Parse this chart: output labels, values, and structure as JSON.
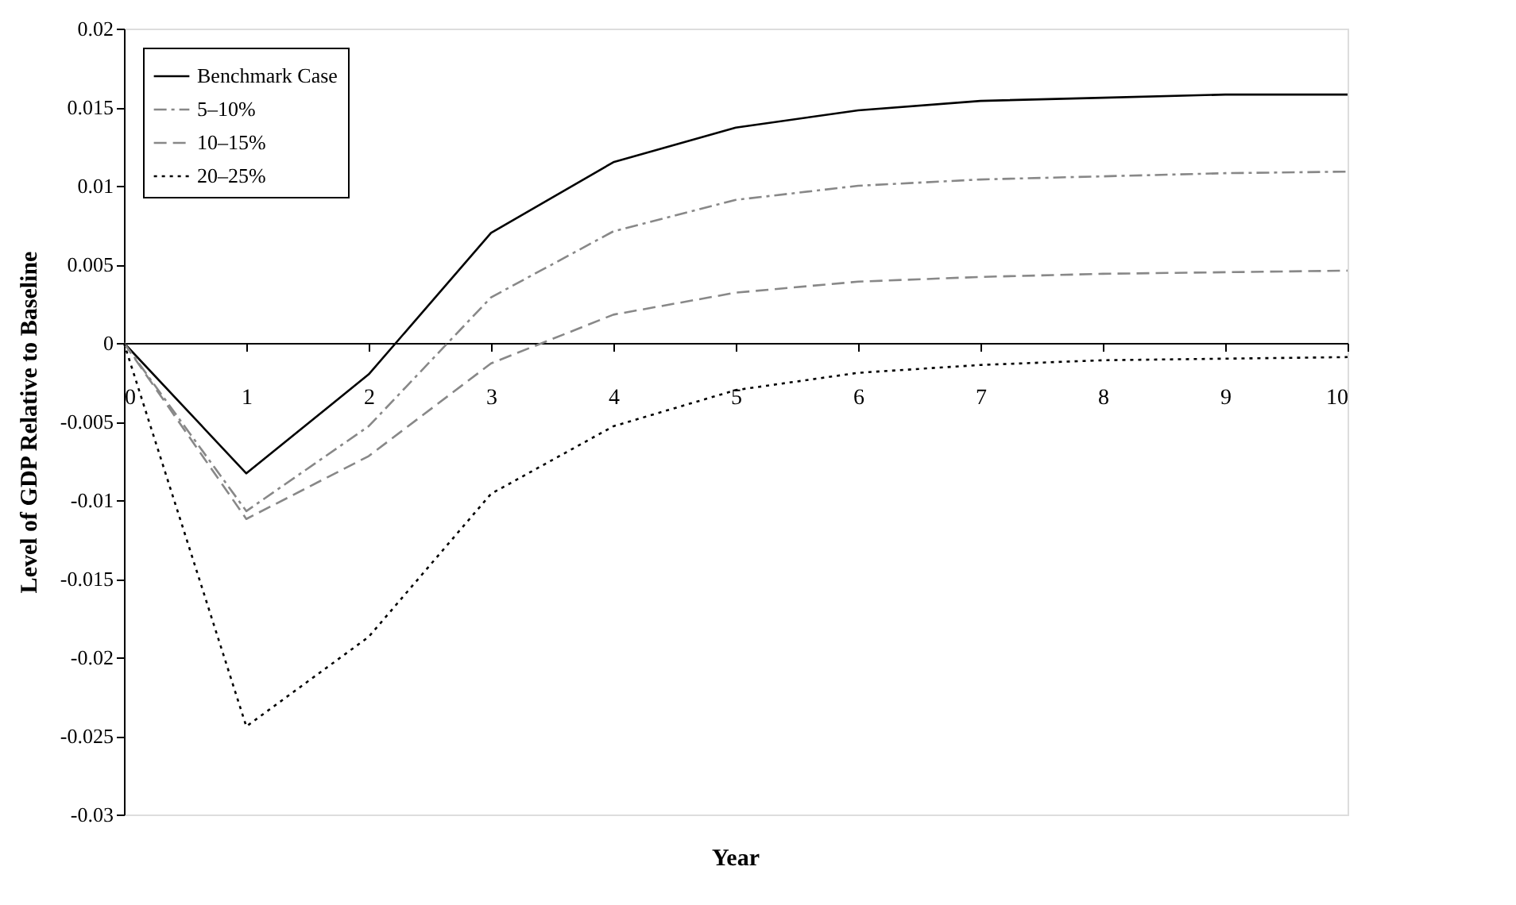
{
  "chart_data": {
    "type": "line",
    "xlabel": "Year",
    "ylabel": "Level of GDP Relative to Baseline",
    "categories": [
      "0",
      "1",
      "2",
      "3",
      "4",
      "5",
      "6",
      "7",
      "8",
      "9",
      "10"
    ],
    "ylim": [
      -0.03,
      0.02
    ],
    "yticks": [
      {
        "value": -0.03,
        "label": "-0.03"
      },
      {
        "value": -0.025,
        "label": "-0.025"
      },
      {
        "value": -0.02,
        "label": "-0.02"
      },
      {
        "value": -0.015,
        "label": "-0.015"
      },
      {
        "value": -0.01,
        "label": "-0.01"
      },
      {
        "value": -0.005,
        "label": "-0.005"
      },
      0,
      0.005,
      0.01,
      0.015,
      0.02
    ],
    "grid": false,
    "legend": "top left",
    "marker": "none",
    "series": [
      {
        "name": "Benchmark Case",
        "color": "#000000",
        "line_style": "solid",
        "values": [
          0,
          -0.0083,
          -0.002,
          0.007,
          0.0115,
          0.0137,
          0.0148,
          0.0154,
          0.0156,
          0.0158,
          0.0158
        ]
      },
      {
        "name": "5–10%",
        "color": "#888888",
        "line_style": "dashdot",
        "values": [
          0,
          -0.0107,
          -0.0053,
          0.0029,
          0.0071,
          0.0091,
          0.01,
          0.0104,
          0.0106,
          0.0108,
          0.0109
        ]
      },
      {
        "name": "10–15%",
        "color": "#888888",
        "line_style": "dashed",
        "values": [
          0,
          -0.0112,
          -0.0072,
          -0.0013,
          0.0018,
          0.0032,
          0.0039,
          0.0042,
          0.0044,
          0.0045,
          0.0046
        ]
      },
      {
        "name": "20–25%",
        "color": "#000000",
        "line_style": "dotted",
        "values": [
          0,
          -0.0244,
          -0.0187,
          -0.0096,
          -0.0053,
          -0.003,
          -0.0019,
          -0.0014,
          -0.0011,
          -0.001,
          -0.0009
        ]
      }
    ]
  }
}
